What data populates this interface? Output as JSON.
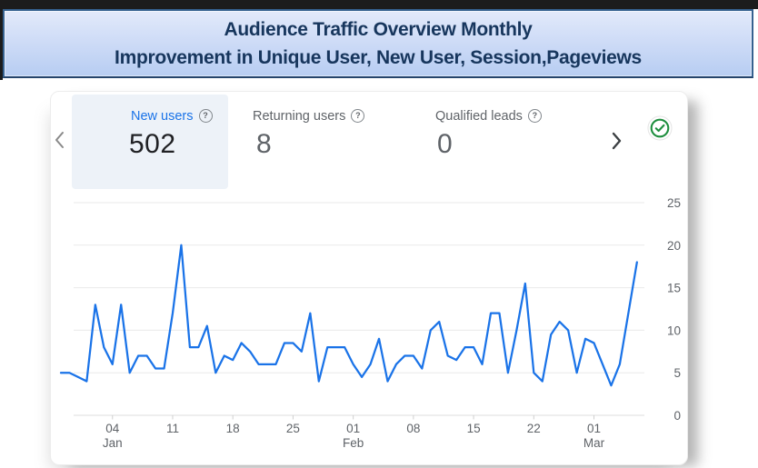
{
  "banner": {
    "line1": "Audience Traffic Overview Monthly",
    "line2": "Improvement in Unique User, New User, Session,Pageviews"
  },
  "scorecards": {
    "items": [
      {
        "label": "New users",
        "value": "502",
        "selected": true
      },
      {
        "label": "Returning users",
        "value": "8",
        "selected": false
      },
      {
        "label": "Qualified leads",
        "value": "0",
        "selected": false
      }
    ],
    "help_glyph": "?"
  },
  "chart_data": {
    "type": "line",
    "title": "",
    "xlabel": "",
    "ylabel": "",
    "ylim": [
      0,
      25
    ],
    "y_ticks": [
      0,
      5,
      10,
      15,
      20,
      25
    ],
    "y_axis_position": "right",
    "grid": true,
    "x_ticks": [
      {
        "label": "04",
        "sub": "Jan",
        "index": 6
      },
      {
        "label": "11",
        "index": 13
      },
      {
        "label": "18",
        "index": 20
      },
      {
        "label": "25",
        "index": 27
      },
      {
        "label": "01",
        "sub": "Feb",
        "index": 34
      },
      {
        "label": "08",
        "index": 41
      },
      {
        "label": "15",
        "index": 48
      },
      {
        "label": "22",
        "index": 55
      },
      {
        "label": "01",
        "sub": "Mar",
        "index": 62
      }
    ],
    "series": [
      {
        "name": "New users",
        "color": "#1a73e8",
        "values": [
          5,
          5,
          4.5,
          4,
          13,
          8,
          6,
          13,
          5,
          7,
          7,
          5.5,
          5.5,
          12,
          20,
          8,
          8,
          10.5,
          5,
          7,
          6.5,
          8.5,
          7.5,
          6,
          6,
          6,
          8.5,
          8.5,
          7.5,
          12,
          4,
          8,
          8,
          8,
          6,
          4.5,
          6,
          9,
          4,
          6,
          7,
          7,
          5.5,
          10,
          11,
          7,
          6.5,
          8,
          8,
          6,
          12,
          12,
          5,
          10,
          15.5,
          5,
          4,
          9.5,
          11,
          10,
          5,
          9,
          8.5,
          6,
          3.5,
          6,
          12,
          18
        ]
      }
    ]
  },
  "colors": {
    "accent_blue": "#1a73e8",
    "label_gray": "#5f6368",
    "value_dark": "#202124",
    "banner_text": "#17365d",
    "banner_border": "#35618f",
    "badge_green": "#1e8e3e",
    "grid_gray": "#e8e8e8",
    "tab_bg": "#edf2f8"
  }
}
